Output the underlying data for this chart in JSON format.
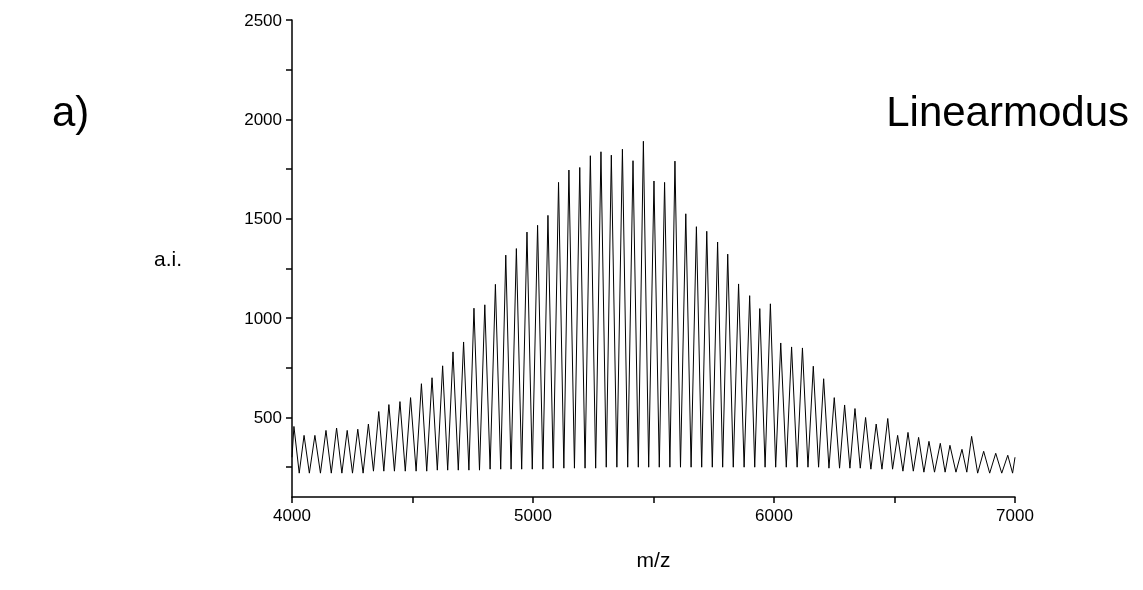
{
  "chart_data": {
    "type": "line",
    "xlabel": "m/z",
    "ylabel": "a.i.",
    "annotations": [
      "a)",
      "Linearmodus"
    ],
    "xlim": [
      4000,
      7000
    ],
    "ylim": [
      100,
      2500
    ],
    "xticks": [
      4000,
      {
        "value": 4500,
        "label": null
      },
      5000,
      {
        "value": 5500,
        "label": null
      },
      6000,
      {
        "value": 6500,
        "label": null
      },
      7000
    ],
    "yticks": [
      {
        "value": 250,
        "label": null
      },
      500,
      {
        "value": 750,
        "label": null
      },
      1000,
      {
        "value": 1250,
        "label": null
      },
      1500,
      {
        "value": 1750,
        "label": null
      },
      2000,
      {
        "value": 2250,
        "label": null
      },
      2500
    ],
    "grid": false,
    "marker": "none",
    "line_style": "solid",
    "series": [
      {
        "color": "#000000",
        "x": [
          4000,
          4008,
          4030,
          4050,
          4072,
          4095,
          4118,
          4141,
          4163,
          4185,
          4207,
          4229,
          4251,
          4273,
          4295,
          4317,
          4338,
          4360,
          4381,
          4402,
          4425,
          4448,
          4470,
          4492,
          4515,
          4537,
          4559,
          4581,
          4603,
          4625,
          4646,
          4668,
          4690,
          4712,
          4734,
          4755,
          4778,
          4800,
          4822,
          4844,
          4866,
          4887,
          4909,
          4931,
          4953,
          4975,
          4997,
          5019,
          5041,
          5062,
          5084,
          5106,
          5128,
          5149,
          5172,
          5194,
          5216,
          5238,
          5260,
          5282,
          5304,
          5325,
          5348,
          5371,
          5393,
          5415,
          5437,
          5458,
          5480,
          5502,
          5524,
          5546,
          5568,
          5589,
          5612,
          5634,
          5656,
          5678,
          5700,
          5721,
          5744,
          5766,
          5787,
          5808,
          5831,
          5853,
          5876,
          5899,
          5920,
          5941,
          5963,
          5985,
          6007,
          6028,
          6051,
          6073,
          6096,
          6118,
          6141,
          6163,
          6185,
          6206,
          6228,
          6250,
          6272,
          6293,
          6315,
          6336,
          6358,
          6380,
          6402,
          6424,
          6448,
          6472,
          6492,
          6513,
          6535,
          6556,
          6578,
          6600,
          6622,
          6643,
          6666,
          6690,
          6710,
          6730,
          6755,
          6780,
          6800,
          6820,
          6845,
          6870,
          6895,
          6920,
          6945,
          6970,
          6990,
          7000
        ],
        "values": [
          300,
          455,
          220,
          410,
          220,
          410,
          220,
          435,
          220,
          447,
          220,
          435,
          220,
          441,
          220,
          467,
          230,
          530,
          230,
          565,
          230,
          580,
          230,
          600,
          230,
          670,
          230,
          700,
          235,
          760,
          235,
          830,
          235,
          880,
          235,
          1050,
          235,
          1067,
          240,
          1170,
          240,
          1317,
          240,
          1350,
          240,
          1433,
          240,
          1467,
          240,
          1517,
          245,
          1683,
          245,
          1745,
          245,
          1758,
          245,
          1817,
          245,
          1837,
          250,
          1820,
          250,
          1850,
          250,
          1792,
          250,
          1890,
          250,
          1690,
          250,
          1683,
          250,
          1790,
          250,
          1525,
          250,
          1460,
          250,
          1437,
          250,
          1383,
          250,
          1322,
          250,
          1172,
          250,
          1113,
          250,
          1048,
          250,
          1072,
          250,
          875,
          250,
          855,
          250,
          850,
          250,
          758,
          250,
          695,
          245,
          600,
          245,
          563,
          245,
          545,
          245,
          500,
          240,
          467,
          240,
          495,
          240,
          410,
          230,
          425,
          230,
          400,
          225,
          380,
          225,
          370,
          225,
          360,
          225,
          340,
          225,
          405,
          220,
          330,
          220,
          320,
          220,
          310,
          220,
          300
        ]
      }
    ]
  }
}
